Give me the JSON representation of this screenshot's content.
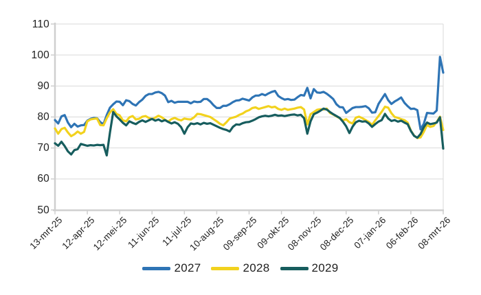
{
  "chart_data": {
    "type": "line",
    "title": "",
    "grid": "horizontal",
    "x_axis": {
      "labels": [
        "13-mrt-25",
        "12-apr-25",
        "12-mei-25",
        "11-jun-25",
        "11-jul-25",
        "10-aug-25",
        "09-sep-25",
        "09-okt-25",
        "08-nov-25",
        "08-dec-25",
        "07-jan-26",
        "06-feb-26",
        "08-mrt-26"
      ],
      "label_rotation_deg": 45,
      "tick_interval_days": 30
    },
    "y_axis": {
      "min": 50,
      "max": 110,
      "step": 10,
      "tick_labels": [
        "50",
        "60",
        "70",
        "80",
        "90",
        "100",
        "110"
      ]
    },
    "sampling": {
      "points_per_series": 121,
      "step_days": 3,
      "start_label": "13-mrt-25",
      "end_label": "08-mrt-26"
    },
    "legend": {
      "position": "bottom",
      "entries": [
        "2027",
        "2028",
        "2029"
      ]
    },
    "colors": {
      "grid": "#d9d9d9",
      "axis": "#cfcfcf",
      "text": "#1f1f1f",
      "background": "#ffffff"
    },
    "series": [
      {
        "name": "2027",
        "color": "#2e74b5",
        "values": [
          79.0,
          77.9,
          80.2,
          80.6,
          78.2,
          76.7,
          77.8,
          76.9,
          77.3,
          77.4,
          78.8,
          79.4,
          79.7,
          79.6,
          78.3,
          77.7,
          80.6,
          83.0,
          84.1,
          85.0,
          84.9,
          83.8,
          85.4,
          85.1,
          84.2,
          83.7,
          84.8,
          85.6,
          86.8,
          87.4,
          87.4,
          87.9,
          88.1,
          87.7,
          86.9,
          84.8,
          85.2,
          84.6,
          84.9,
          84.9,
          84.9,
          84.9,
          84.4,
          85.0,
          84.8,
          84.9,
          85.8,
          85.8,
          85.0,
          83.8,
          82.9,
          82.9,
          83.6,
          83.6,
          84.1,
          84.8,
          85.3,
          85.4,
          85.9,
          85.6,
          85.3,
          86.3,
          86.9,
          86.9,
          87.4,
          87.0,
          87.6,
          88.1,
          88.4,
          86.8,
          86.1,
          85.6,
          85.8,
          85.5,
          85.6,
          86.4,
          87.1,
          86.9,
          89.4,
          86.0,
          89.0,
          87.9,
          87.8,
          88.1,
          87.5,
          86.7,
          85.8,
          84.1,
          83.2,
          83.1,
          81.3,
          82.1,
          82.9,
          83.2,
          83.2,
          83.3,
          83.5,
          82.8,
          81.4,
          81.5,
          84.2,
          85.8,
          87.4,
          85.4,
          84.2,
          85.0,
          85.6,
          86.3,
          84.6,
          83.5,
          82.6,
          82.7,
          82.2,
          76.0,
          77.8,
          81.3,
          81.2,
          81.1,
          82.1,
          99.4,
          94.3
        ]
      },
      {
        "name": "2028",
        "color": "#f2d21e",
        "values": [
          76.3,
          74.6,
          76.1,
          76.5,
          75.0,
          73.8,
          74.4,
          75.3,
          74.6,
          75.2,
          78.6,
          79.2,
          79.4,
          79.5,
          77.4,
          77.3,
          79.6,
          81.5,
          82.5,
          81.0,
          80.5,
          78.9,
          78.6,
          79.9,
          80.3,
          79.2,
          79.4,
          80.1,
          80.3,
          79.7,
          79.3,
          79.8,
          80.4,
          79.9,
          79.1,
          78.5,
          79.3,
          79.7,
          79.2,
          78.9,
          79.5,
          79.3,
          79.2,
          79.9,
          81.0,
          80.9,
          80.6,
          80.3,
          80.0,
          79.3,
          78.6,
          77.8,
          77.3,
          78.3,
          79.5,
          79.8,
          80.1,
          80.7,
          81.1,
          81.8,
          82.2,
          82.9,
          83.1,
          82.6,
          82.9,
          83.2,
          83.5,
          83.1,
          83.3,
          82.6,
          82.3,
          82.7,
          82.3,
          82.5,
          82.7,
          83.0,
          83.2,
          82.4,
          77.6,
          80.9,
          81.6,
          82.3,
          82.5,
          82.4,
          82.7,
          81.3,
          80.8,
          80.2,
          79.6,
          78.9,
          79.3,
          78.3,
          77.9,
          79.8,
          80.1,
          79.6,
          79.0,
          78.4,
          77.5,
          78.9,
          80.3,
          81.7,
          83.3,
          83.0,
          81.2,
          80.0,
          79.7,
          79.3,
          79.0,
          78.2,
          75.6,
          74.0,
          73.2,
          73.4,
          75.2,
          77.4,
          76.8,
          77.1,
          78.4,
          80.1,
          75.8
        ]
      },
      {
        "name": "2029",
        "color": "#175d5e",
        "values": [
          71.5,
          70.7,
          72.0,
          70.6,
          68.9,
          67.9,
          69.3,
          69.6,
          71.3,
          71.0,
          70.7,
          70.9,
          70.8,
          71.0,
          70.9,
          71.0,
          67.6,
          75.0,
          81.6,
          80.2,
          79.2,
          78.1,
          77.3,
          78.6,
          78.1,
          77.7,
          78.4,
          78.9,
          78.4,
          78.9,
          79.4,
          78.8,
          79.2,
          78.6,
          79.0,
          78.4,
          77.9,
          78.3,
          77.8,
          76.7,
          74.6,
          76.7,
          77.9,
          77.7,
          78.0,
          77.6,
          78.1,
          77.8,
          78.0,
          77.5,
          77.0,
          76.5,
          76.1,
          75.8,
          75.3,
          76.8,
          77.6,
          77.5,
          78.0,
          78.3,
          78.4,
          78.8,
          79.3,
          79.9,
          80.2,
          80.4,
          80.2,
          80.4,
          80.7,
          80.4,
          80.5,
          80.3,
          80.5,
          80.7,
          80.8,
          80.5,
          80.7,
          79.6,
          74.6,
          78.6,
          80.9,
          81.4,
          82.0,
          82.7,
          82.4,
          81.6,
          80.9,
          80.3,
          79.7,
          78.5,
          77.0,
          74.8,
          76.9,
          78.3,
          78.8,
          78.5,
          78.6,
          77.9,
          76.8,
          77.7,
          78.5,
          79.0,
          81.0,
          79.5,
          78.7,
          79.0,
          78.5,
          78.8,
          78.2,
          77.7,
          75.5,
          73.9,
          73.3,
          74.5,
          76.7,
          78.2,
          77.7,
          77.9,
          78.2,
          79.9,
          69.8
        ]
      }
    ]
  }
}
